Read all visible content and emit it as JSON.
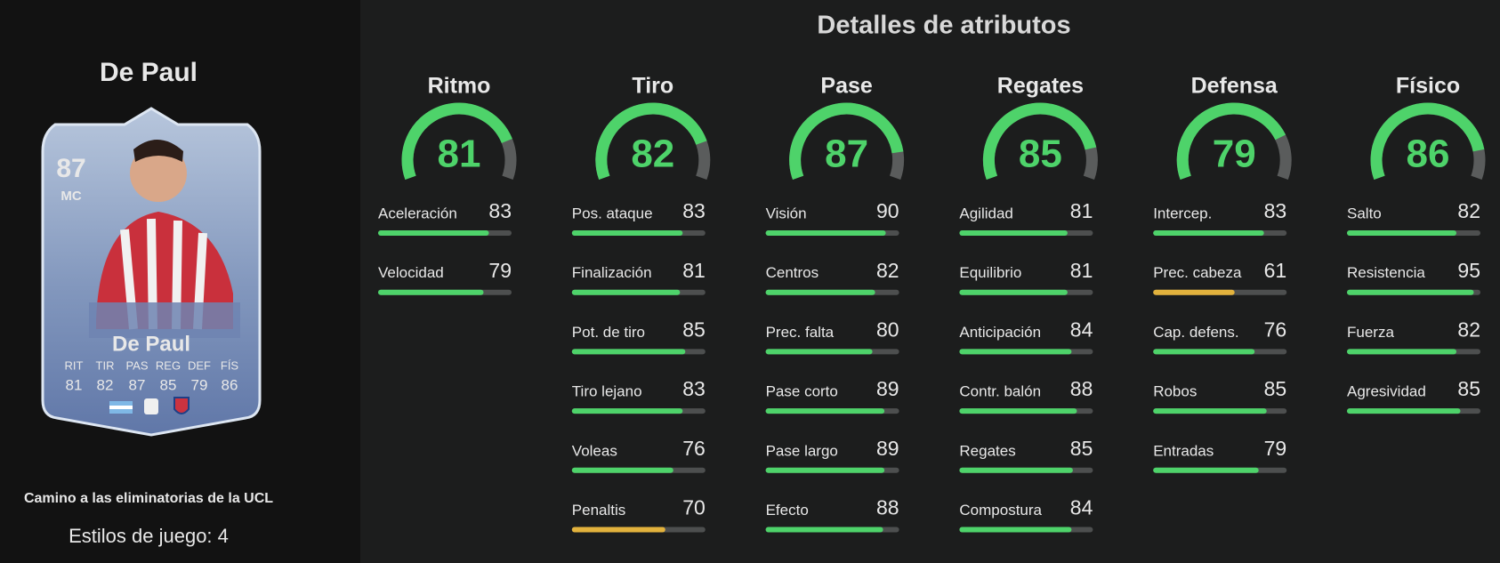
{
  "player": {
    "name": "De Paul"
  },
  "card": {
    "rating": 87,
    "position": "MC",
    "name": "De Paul",
    "stats": [
      {
        "label": "RIT",
        "value": 81
      },
      {
        "label": "TIR",
        "value": 82
      },
      {
        "label": "PAS",
        "value": 87
      },
      {
        "label": "REG",
        "value": 85
      },
      {
        "label": "DEF",
        "value": 79
      },
      {
        "label": "FÍS",
        "value": 86
      }
    ]
  },
  "promo": "Camino a las eliminatorias de la UCL",
  "playstyles": "Estilos de juego: 4",
  "panel_title": "Detalles de atributos",
  "bar_range": [
    0,
    100
  ],
  "gauge_color": "#4ed36a",
  "categories": [
    {
      "name": "Ritmo",
      "value": 81,
      "attributes": [
        {
          "name": "Aceleración",
          "value": 83,
          "color": "#4ed36a"
        },
        {
          "name": "Velocidad",
          "value": 79,
          "color": "#4ed36a"
        }
      ]
    },
    {
      "name": "Tiro",
      "value": 82,
      "attributes": [
        {
          "name": "Pos. ataque",
          "value": 83,
          "color": "#4ed36a"
        },
        {
          "name": "Finalización",
          "value": 81,
          "color": "#4ed36a"
        },
        {
          "name": "Pot. de tiro",
          "value": 85,
          "color": "#4ed36a"
        },
        {
          "name": "Tiro lejano",
          "value": 83,
          "color": "#4ed36a"
        },
        {
          "name": "Voleas",
          "value": 76,
          "color": "#4ed36a"
        },
        {
          "name": "Penaltis",
          "value": 70,
          "color": "#e2b23d"
        }
      ]
    },
    {
      "name": "Pase",
      "value": 87,
      "attributes": [
        {
          "name": "Visión",
          "value": 90,
          "color": "#4ed36a"
        },
        {
          "name": "Centros",
          "value": 82,
          "color": "#4ed36a"
        },
        {
          "name": "Prec. falta",
          "value": 80,
          "color": "#4ed36a"
        },
        {
          "name": "Pase corto",
          "value": 89,
          "color": "#4ed36a"
        },
        {
          "name": "Pase largo",
          "value": 89,
          "color": "#4ed36a"
        },
        {
          "name": "Efecto",
          "value": 88,
          "color": "#4ed36a"
        }
      ]
    },
    {
      "name": "Regates",
      "value": 85,
      "attributes": [
        {
          "name": "Agilidad",
          "value": 81,
          "color": "#4ed36a"
        },
        {
          "name": "Equilibrio",
          "value": 81,
          "color": "#4ed36a"
        },
        {
          "name": "Anticipación",
          "value": 84,
          "color": "#4ed36a"
        },
        {
          "name": "Contr. balón",
          "value": 88,
          "color": "#4ed36a"
        },
        {
          "name": "Regates",
          "value": 85,
          "color": "#4ed36a"
        },
        {
          "name": "Compostura",
          "value": 84,
          "color": "#4ed36a"
        }
      ]
    },
    {
      "name": "Defensa",
      "value": 79,
      "attributes": [
        {
          "name": "Intercep.",
          "value": 83,
          "color": "#4ed36a"
        },
        {
          "name": "Prec. cabeza",
          "value": 61,
          "color": "#e2b23d"
        },
        {
          "name": "Cap. defens.",
          "value": 76,
          "color": "#4ed36a"
        },
        {
          "name": "Robos",
          "value": 85,
          "color": "#4ed36a"
        },
        {
          "name": "Entradas",
          "value": 79,
          "color": "#4ed36a"
        }
      ]
    },
    {
      "name": "Físico",
      "value": 86,
      "attributes": [
        {
          "name": "Salto",
          "value": 82,
          "color": "#4ed36a"
        },
        {
          "name": "Resistencia",
          "value": 95,
          "color": "#4ed36a"
        },
        {
          "name": "Fuerza",
          "value": 82,
          "color": "#4ed36a"
        },
        {
          "name": "Agresividad",
          "value": 85,
          "color": "#4ed36a"
        }
      ]
    }
  ]
}
